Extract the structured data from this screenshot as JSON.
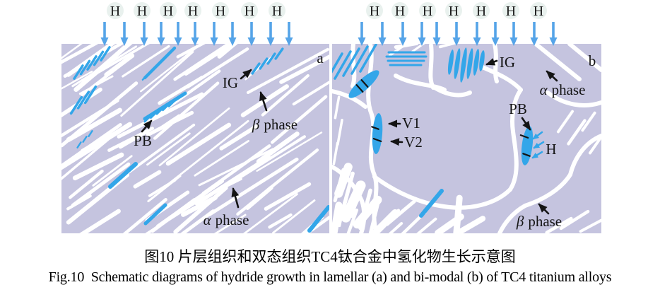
{
  "figure": {
    "caption_zh": "图10 片层组织和双态组织TC4钛合金中氢化物生长示意图",
    "caption_en": "Fig.10  Schematic diagrams of hydride growth in lamellar (a) and bi-modal (b) of TC4 titanium alloys"
  },
  "colors": {
    "matrix_lavender": "#c5c4df",
    "lamella_white": "#ffffff",
    "hydride_blue": "#33a6e9",
    "arrow_blue": "#55a4e8",
    "h_circle_fill": "#e9f1ee",
    "label_black": "#141414"
  },
  "top_row_a": {
    "h_labels": [
      "H",
      "H",
      "H",
      "H",
      "H",
      "H",
      "H"
    ]
  },
  "top_row_b": {
    "h_labels": [
      "H",
      "H",
      "H",
      "H",
      "H",
      "H",
      "H"
    ]
  },
  "panel_a": {
    "corner": "a",
    "labels": {
      "ig": "IG",
      "pb": "PB",
      "beta_sym": "β",
      "beta_word": "phase",
      "alpha_sym": "α",
      "alpha_word": "phase"
    }
  },
  "panel_b": {
    "corner": "b",
    "labels": {
      "ig": "IG",
      "pb": "PB",
      "h": "H",
      "v1": "V1",
      "v2": "V2",
      "beta_sym": "β",
      "beta_word": "phase",
      "alpha_sym": "α",
      "alpha_word": "phase"
    }
  }
}
